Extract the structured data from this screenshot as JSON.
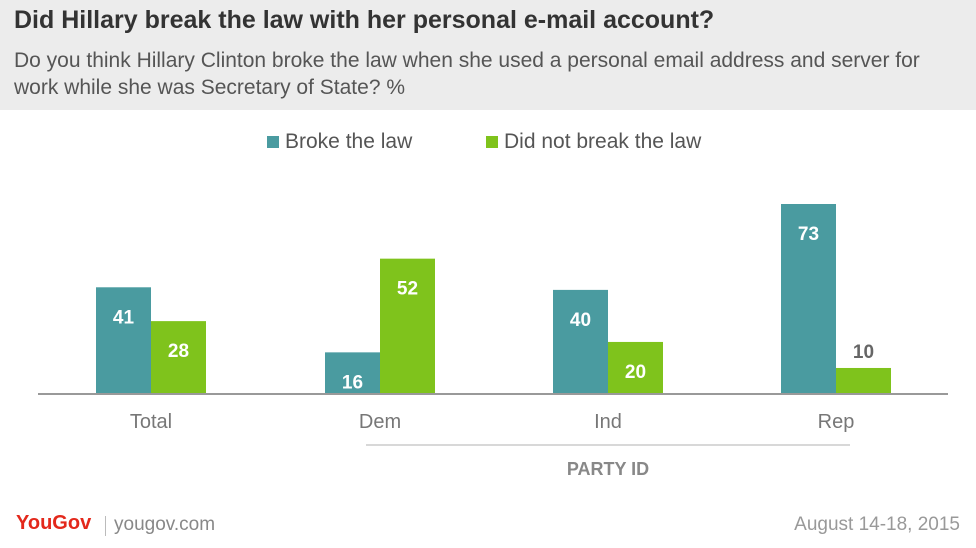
{
  "chart_data": {
    "type": "bar",
    "title": "Did Hillary break the law with her personal e-mail account?",
    "subtitle": "Do you think Hillary Clinton broke the law when she used a personal email address and server for work while she was Secretary of State? %",
    "categories": [
      "Total",
      "Dem",
      "Ind",
      "Rep"
    ],
    "series": [
      {
        "name": "Broke the law",
        "values": [
          41,
          16,
          40,
          73
        ],
        "color": "#4a9ba0"
      },
      {
        "name": "Did not break the law",
        "values": [
          28,
          52,
          20,
          10
        ],
        "color": "#7fc31c"
      }
    ],
    "group_label": "PARTY ID",
    "group_categories": [
      "Dem",
      "Ind",
      "Rep"
    ],
    "ylim": [
      0,
      73
    ],
    "grid": false,
    "legend_position": "top-center"
  },
  "footer": {
    "brand": "YouGov",
    "site": "yougov.com",
    "date": "August 14-18, 2015"
  }
}
